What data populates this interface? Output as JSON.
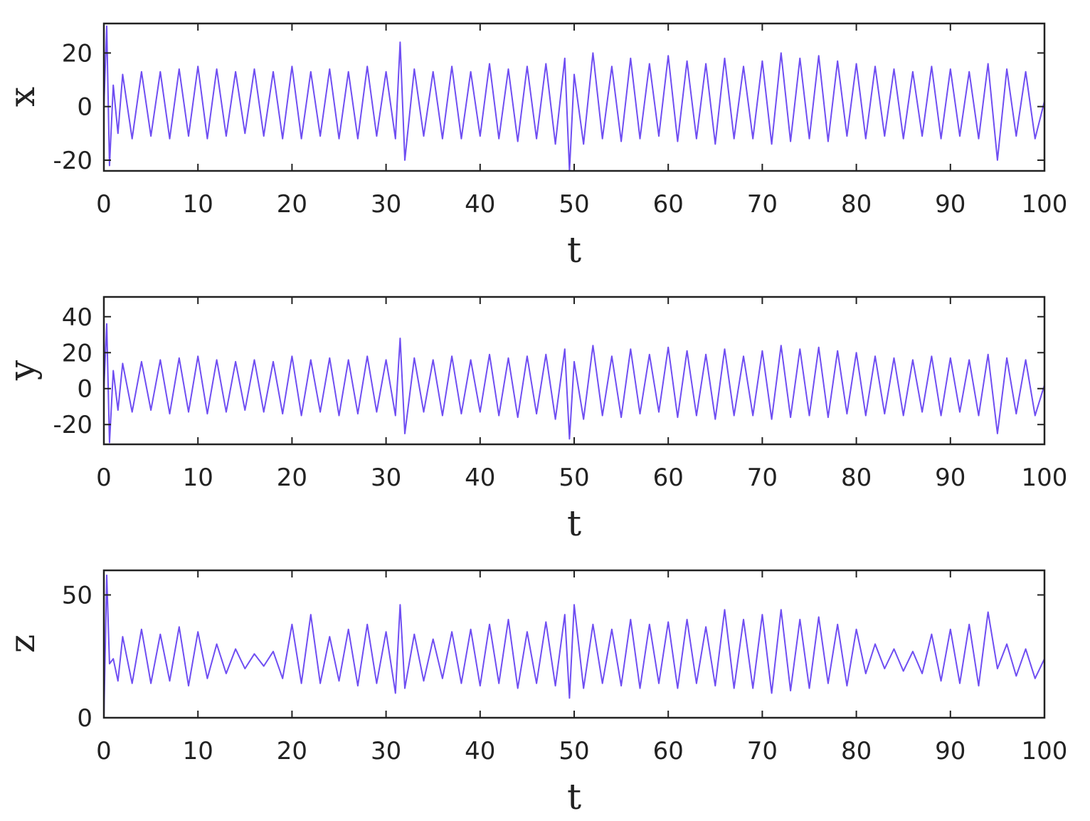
{
  "colors": {
    "line": "#6f4ef2",
    "axes": "#222222"
  },
  "chart_data": [
    {
      "type": "line",
      "xlabel": "t",
      "ylabel": "x",
      "xlim": [
        0,
        100
      ],
      "ylim": [
        -24,
        31
      ],
      "xticks": [
        0,
        10,
        20,
        30,
        40,
        50,
        60,
        70,
        80,
        90,
        100
      ],
      "yticks": [
        -20,
        0,
        20
      ],
      "series": [
        {
          "x": [
            0,
            0.3,
            0.6,
            1,
            1.5,
            2,
            3,
            4,
            5,
            6,
            7,
            8,
            9,
            10,
            11,
            12,
            13,
            14,
            15,
            16,
            17,
            18,
            19,
            20,
            21,
            22,
            23,
            24,
            25,
            26,
            27,
            28,
            29,
            30,
            31,
            31.5,
            32,
            33,
            34,
            35,
            36,
            37,
            38,
            39,
            40,
            41,
            42,
            43,
            44,
            45,
            46,
            47,
            48,
            49,
            49.5,
            50,
            51,
            52,
            53,
            54,
            55,
            56,
            57,
            58,
            59,
            60,
            61,
            62,
            63,
            64,
            65,
            66,
            67,
            68,
            69,
            70,
            71,
            72,
            73,
            74,
            75,
            76,
            77,
            78,
            79,
            80,
            81,
            82,
            83,
            84,
            85,
            86,
            87,
            88,
            89,
            90,
            91,
            92,
            93,
            94,
            95,
            96,
            97,
            98,
            99,
            100
          ],
          "y": [
            0,
            30,
            -22,
            8,
            -10,
            12,
            -12,
            13,
            -11,
            13,
            -12,
            14,
            -11,
            15,
            -12,
            14,
            -11,
            13,
            -10,
            14,
            -11,
            13,
            -12,
            15,
            -12,
            13,
            -11,
            14,
            -12,
            13,
            -12,
            15,
            -11,
            13,
            -12,
            24,
            -20,
            14,
            -11,
            13,
            -12,
            15,
            -12,
            13,
            -11,
            16,
            -12,
            14,
            -13,
            15,
            -12,
            16,
            -14,
            18,
            -24,
            12,
            -14,
            20,
            -12,
            15,
            -13,
            18,
            -12,
            16,
            -11,
            19,
            -13,
            17,
            -12,
            16,
            -14,
            18,
            -12,
            15,
            -12,
            17,
            -14,
            20,
            -13,
            18,
            -12,
            19,
            -13,
            17,
            -11,
            16,
            -12,
            15,
            -11,
            14,
            -12,
            13,
            -11,
            15,
            -12,
            14,
            -11,
            13,
            -12,
            16,
            -20,
            14,
            -11,
            13,
            -12,
            2
          ]
        }
      ]
    },
    {
      "type": "line",
      "xlabel": "t",
      "ylabel": "y",
      "xlim": [
        0,
        100
      ],
      "ylim": [
        -31,
        51
      ],
      "xticks": [
        0,
        10,
        20,
        30,
        40,
        50,
        60,
        70,
        80,
        90,
        100
      ],
      "yticks": [
        -20,
        0,
        20,
        40
      ],
      "series": [
        {
          "x": [
            0,
            0.3,
            0.6,
            1,
            1.5,
            2,
            3,
            4,
            5,
            6,
            7,
            8,
            9,
            10,
            11,
            12,
            13,
            14,
            15,
            16,
            17,
            18,
            19,
            20,
            21,
            22,
            23,
            24,
            25,
            26,
            27,
            28,
            29,
            30,
            31,
            31.5,
            32,
            33,
            34,
            35,
            36,
            37,
            38,
            39,
            40,
            41,
            42,
            43,
            44,
            45,
            46,
            47,
            48,
            49,
            49.5,
            50,
            51,
            52,
            53,
            54,
            55,
            56,
            57,
            58,
            59,
            60,
            61,
            62,
            63,
            64,
            65,
            66,
            67,
            68,
            69,
            70,
            71,
            72,
            73,
            74,
            75,
            76,
            77,
            78,
            79,
            80,
            81,
            82,
            83,
            84,
            85,
            86,
            87,
            88,
            89,
            90,
            91,
            92,
            93,
            94,
            95,
            96,
            97,
            98,
            99,
            100
          ],
          "y": [
            0,
            36,
            -30,
            10,
            -12,
            14,
            -13,
            15,
            -12,
            16,
            -14,
            17,
            -13,
            18,
            -14,
            16,
            -13,
            15,
            -12,
            16,
            -13,
            15,
            -14,
            18,
            -15,
            16,
            -13,
            17,
            -15,
            16,
            -14,
            18,
            -13,
            16,
            -15,
            28,
            -25,
            17,
            -13,
            16,
            -15,
            18,
            -14,
            16,
            -13,
            19,
            -15,
            17,
            -16,
            18,
            -14,
            19,
            -17,
            22,
            -28,
            15,
            -17,
            24,
            -15,
            18,
            -16,
            22,
            -14,
            19,
            -13,
            23,
            -16,
            21,
            -15,
            19,
            -17,
            22,
            -15,
            18,
            -15,
            21,
            -17,
            24,
            -16,
            22,
            -15,
            23,
            -16,
            21,
            -14,
            20,
            -15,
            18,
            -14,
            17,
            -15,
            16,
            -13,
            18,
            -15,
            17,
            -13,
            16,
            -15,
            19,
            -25,
            17,
            -14,
            16,
            -15,
            2
          ]
        }
      ]
    },
    {
      "type": "line",
      "xlabel": "t",
      "ylabel": "z",
      "xlim": [
        0,
        100
      ],
      "ylim": [
        0,
        60
      ],
      "xticks": [
        0,
        10,
        20,
        30,
        40,
        50,
        60,
        70,
        80,
        90,
        100
      ],
      "yticks": [
        0,
        50
      ],
      "series": [
        {
          "x": [
            0,
            0.3,
            0.6,
            1,
            1.5,
            2,
            3,
            4,
            5,
            6,
            7,
            8,
            9,
            10,
            11,
            12,
            13,
            14,
            15,
            16,
            17,
            18,
            19,
            20,
            21,
            22,
            23,
            24,
            25,
            26,
            27,
            28,
            29,
            30,
            31,
            31.5,
            32,
            33,
            34,
            35,
            36,
            37,
            38,
            39,
            40,
            41,
            42,
            43,
            44,
            45,
            46,
            47,
            48,
            49,
            49.5,
            50,
            51,
            52,
            53,
            54,
            55,
            56,
            57,
            58,
            59,
            60,
            61,
            62,
            63,
            64,
            65,
            66,
            67,
            68,
            69,
            70,
            71,
            72,
            73,
            74,
            75,
            76,
            77,
            78,
            79,
            80,
            81,
            82,
            83,
            84,
            85,
            86,
            87,
            88,
            89,
            90,
            91,
            92,
            93,
            94,
            95,
            96,
            97,
            98,
            99,
            100
          ],
          "y": [
            0,
            58,
            22,
            24,
            15,
            33,
            14,
            36,
            14,
            34,
            15,
            37,
            13,
            35,
            16,
            30,
            18,
            28,
            20,
            26,
            21,
            27,
            16,
            38,
            14,
            42,
            14,
            33,
            15,
            36,
            13,
            38,
            14,
            35,
            10,
            46,
            12,
            34,
            15,
            32,
            16,
            35,
            14,
            36,
            13,
            38,
            14,
            40,
            12,
            35,
            14,
            39,
            13,
            42,
            8,
            46,
            12,
            38,
            14,
            36,
            13,
            40,
            12,
            38,
            14,
            39,
            12,
            40,
            14,
            37,
            13,
            44,
            12,
            40,
            12,
            42,
            10,
            44,
            11,
            40,
            12,
            41,
            14,
            38,
            13,
            36,
            18,
            30,
            20,
            28,
            19,
            27,
            18,
            34,
            15,
            36,
            14,
            38,
            13,
            43,
            20,
            30,
            17,
            28,
            16,
            24
          ]
        }
      ]
    }
  ]
}
